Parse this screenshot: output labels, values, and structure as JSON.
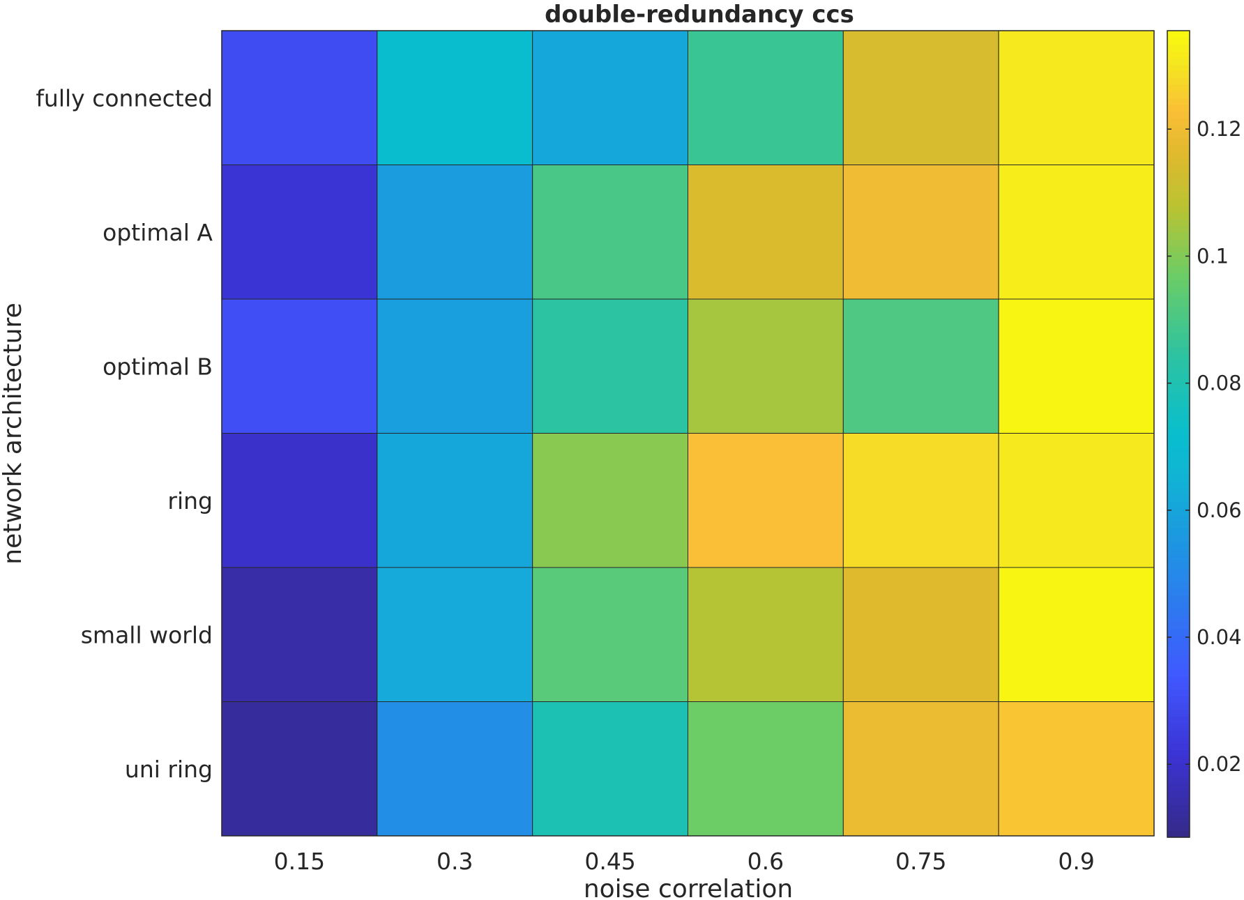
{
  "chart_data": {
    "type": "heatmap",
    "title": "double-redundancy ccs",
    "xlabel": "noise correlation",
    "ylabel": "network architecture",
    "x_categories": [
      "0.15",
      "0.3",
      "0.45",
      "0.6",
      "0.75",
      "0.9"
    ],
    "y_categories": [
      "fully connected",
      "optimal A",
      "optimal B",
      "ring",
      "small world",
      "uni ring"
    ],
    "values": [
      [
        0.03,
        0.071,
        0.061,
        0.087,
        0.114,
        0.131
      ],
      [
        0.022,
        0.057,
        0.09,
        0.115,
        0.12,
        0.132
      ],
      [
        0.031,
        0.058,
        0.084,
        0.105,
        0.091,
        0.134
      ],
      [
        0.02,
        0.061,
        0.101,
        0.123,
        0.128,
        0.131
      ],
      [
        0.014,
        0.062,
        0.093,
        0.107,
        0.116,
        0.134
      ],
      [
        0.012,
        0.052,
        0.079,
        0.097,
        0.119,
        0.124
      ]
    ],
    "colormap": "parula",
    "clim": [
      0.0085,
      0.1355
    ],
    "colorbar": {
      "position": "right",
      "ticks": [
        0.02,
        0.04,
        0.06,
        0.08,
        0.1,
        0.12
      ],
      "tick_labels": [
        "0.02",
        "0.04",
        "0.06",
        "0.08",
        "0.1",
        "0.12"
      ]
    },
    "grid": true
  }
}
